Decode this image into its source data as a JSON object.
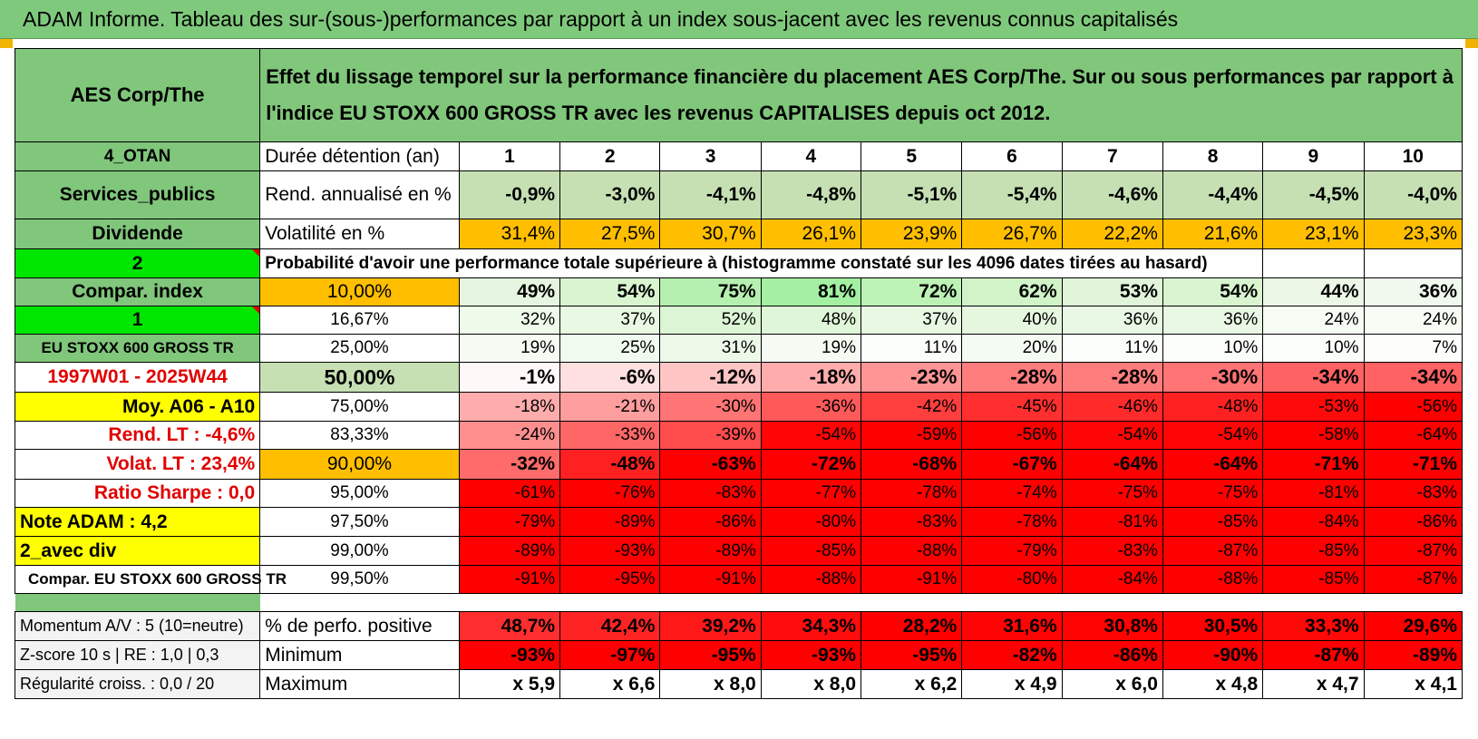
{
  "title": "ADAM Informe. Tableau des sur-(sous-)performances par rapport à un index sous-jacent avec les revenus connus capitalisés",
  "header": {
    "asset": "AES Corp/The",
    "description": "Effet du lissage temporel sur la performance financière du placement AES Corp/The. Sur ou sous performances par rapport à l'indice EU STOXX 600 GROSS TR avec les revenus CAPITALISES depuis oct 2012."
  },
  "left": {
    "otan": "4_OTAN",
    "sector": "Services_publics",
    "dividende": "Dividende",
    "two": "2",
    "compar_index": "Compar. index",
    "one": "1",
    "index_name": "EU STOXX 600 GROSS TR",
    "period": "1997W01 - 2025W44",
    "moy": "Moy. A06 - A10",
    "rend_lt": "Rend. LT :    -4,6%",
    "volat_lt": "Volat. LT :    23,4%",
    "sharpe": "Ratio Sharpe :     0,0",
    "note": "Note ADAM : 4,2",
    "avec_div": "2_avec div",
    "compar_eu": "Compar. EU STOXX 600 GROSS TR",
    "momentum": "Momentum A/V : 5 (10=neutre)",
    "zscore": "Z-score 10 s | RE : 1,0 | 0,3",
    "regularite": "Régularité croiss. : 0,0 / 20"
  },
  "rows": {
    "duree_label": "Durée détention (an)",
    "years": [
      "1",
      "2",
      "3",
      "4",
      "5",
      "6",
      "7",
      "8",
      "9",
      "10"
    ],
    "rend_label": "Rend. annualisé en %",
    "rend": [
      "-0,9%",
      "-3,0%",
      "-4,1%",
      "-4,8%",
      "-5,1%",
      "-5,4%",
      "-4,6%",
      "-4,4%",
      "-4,5%",
      "-4,0%"
    ],
    "vol_label": "Volatilité en %",
    "vol": [
      "31,4%",
      "27,5%",
      "30,7%",
      "26,1%",
      "23,9%",
      "26,7%",
      "22,2%",
      "21,6%",
      "23,1%",
      "23,3%"
    ],
    "prob_label": "Probabilité d'avoir une performance totale supérieure à (histogramme constaté sur les 4096 dates tirées au hasard)",
    "quantiles": [
      {
        "label": "10,00%",
        "values": [
          "49%",
          "54%",
          "75%",
          "81%",
          "72%",
          "62%",
          "53%",
          "54%",
          "44%",
          "36%"
        ],
        "colors": [
          "#e6f5df",
          "#d9f5d0",
          "#b5f0b0",
          "#a3f0a3",
          "#bcf2b5",
          "#d0f3c8",
          "#e0f5da",
          "#d9f5d0",
          "#ecf7e8",
          "#f1f9ee"
        ]
      },
      {
        "label": "16,67%",
        "values": [
          "32%",
          "37%",
          "52%",
          "48%",
          "37%",
          "40%",
          "36%",
          "36%",
          "24%",
          "24%"
        ],
        "colors": [
          "#eefaea",
          "#e8f8e3",
          "#dcf5d4",
          "#e0f6d8",
          "#e8f8e3",
          "#e6f7e0",
          "#e9f8e4",
          "#e9f8e4",
          "#f6fbf4",
          "#f6fbf4"
        ]
      },
      {
        "label": "25,00%",
        "values": [
          "19%",
          "25%",
          "31%",
          "19%",
          "11%",
          "20%",
          "11%",
          "10%",
          "10%",
          "7%"
        ],
        "colors": [
          "#f5fbf3",
          "#f1faef",
          "#ecf8e8",
          "#f5fbf3",
          "#fafdf9",
          "#f4fbf2",
          "#fafdf9",
          "#fbfdfa",
          "#fbfdfa",
          "#fdfefc"
        ]
      },
      {
        "label": "50,00%",
        "values": [
          "-1%",
          "-6%",
          "-12%",
          "-18%",
          "-23%",
          "-28%",
          "-28%",
          "-30%",
          "-34%",
          "-34%"
        ],
        "colors": [
          "#fff8f8",
          "#ffe0e0",
          "#ffc4c4",
          "#ffacac",
          "#ff9595",
          "#ff7d7d",
          "#ff7d7d",
          "#ff7474",
          "#ff6262",
          "#ff6262"
        ]
      },
      {
        "label": "75,00%",
        "values": [
          "-18%",
          "-21%",
          "-30%",
          "-36%",
          "-42%",
          "-45%",
          "-46%",
          "-48%",
          "-53%",
          "-56%"
        ],
        "colors": [
          "#ffacac",
          "#ff9e9e",
          "#ff7474",
          "#ff5a5a",
          "#ff3e3e",
          "#ff2f2f",
          "#ff2a2a",
          "#ff2121",
          "#ff0a0a",
          "#ff0000"
        ]
      },
      {
        "label": "83,33%",
        "values": [
          "-24%",
          "-33%",
          "-39%",
          "-54%",
          "-59%",
          "-56%",
          "-54%",
          "-54%",
          "-58%",
          "-64%"
        ],
        "colors": [
          "#ff8f8f",
          "#ff6767",
          "#ff4c4c",
          "#ff0606",
          "#ff0000",
          "#ff0000",
          "#ff0606",
          "#ff0606",
          "#ff0000",
          "#ff0000"
        ]
      },
      {
        "label": "90,00%",
        "values": [
          "-32%",
          "-48%",
          "-63%",
          "-72%",
          "-68%",
          "-67%",
          "-64%",
          "-64%",
          "-71%",
          "-71%"
        ],
        "colors": [
          "#ff6b6b",
          "#ff2121",
          "#ff0000",
          "#ff0000",
          "#ff0000",
          "#ff0000",
          "#ff0000",
          "#ff0000",
          "#ff0000",
          "#ff0000"
        ]
      },
      {
        "label": "95,00%",
        "values": [
          "-61%",
          "-76%",
          "-83%",
          "-77%",
          "-78%",
          "-74%",
          "-75%",
          "-75%",
          "-81%",
          "-83%"
        ],
        "colors": [
          "#ff0000",
          "#ff0000",
          "#ff0000",
          "#ff0000",
          "#ff0000",
          "#ff0000",
          "#ff0000",
          "#ff0000",
          "#ff0000",
          "#ff0000"
        ]
      },
      {
        "label": "97,50%",
        "values": [
          "-79%",
          "-89%",
          "-86%",
          "-80%",
          "-83%",
          "-78%",
          "-81%",
          "-85%",
          "-84%",
          "-86%"
        ],
        "colors": [
          "#ff0000",
          "#ff0000",
          "#ff0000",
          "#ff0000",
          "#ff0000",
          "#ff0000",
          "#ff0000",
          "#ff0000",
          "#ff0000",
          "#ff0000"
        ]
      },
      {
        "label": "99,00%",
        "values": [
          "-89%",
          "-93%",
          "-89%",
          "-85%",
          "-88%",
          "-79%",
          "-83%",
          "-87%",
          "-85%",
          "-87%"
        ],
        "colors": [
          "#ff0000",
          "#ff0000",
          "#ff0000",
          "#ff0000",
          "#ff0000",
          "#ff0000",
          "#ff0000",
          "#ff0000",
          "#ff0000",
          "#ff0000"
        ]
      },
      {
        "label": "99,50%",
        "values": [
          "-91%",
          "-95%",
          "-91%",
          "-88%",
          "-91%",
          "-80%",
          "-84%",
          "-88%",
          "-85%",
          "-87%"
        ],
        "colors": [
          "#ff0000",
          "#ff0000",
          "#ff0000",
          "#ff0000",
          "#ff0000",
          "#ff0000",
          "#ff0000",
          "#ff0000",
          "#ff0000",
          "#ff0000"
        ]
      }
    ],
    "pos_label": "% de perfo. positive",
    "pos": [
      "48,7%",
      "42,4%",
      "39,2%",
      "34,3%",
      "28,2%",
      "31,6%",
      "30,8%",
      "30,5%",
      "33,3%",
      "29,6%"
    ],
    "pos_colors": [
      "#ff2e2e",
      "#ff2424",
      "#ff1818",
      "#ff0d0d",
      "#ff0000",
      "#ff0404",
      "#ff0202",
      "#ff0101",
      "#ff0808",
      "#ff0000"
    ],
    "min_label": "Minimum",
    "min": [
      "-93%",
      "-97%",
      "-95%",
      "-93%",
      "-95%",
      "-82%",
      "-86%",
      "-90%",
      "-87%",
      "-89%"
    ],
    "max_label": "Maximum",
    "max": [
      "x 5,9",
      "x 6,6",
      "x 8,0",
      "x 8,0",
      "x 6,2",
      "x 4,9",
      "x 6,0",
      "x 4,8",
      "x 4,7",
      "x 4,1"
    ]
  },
  "colors": {
    "title_bg": "#7fc97c",
    "header_green": "#80c67b",
    "light_green": "#c6e0b4",
    "bright_green": "#00e600",
    "orange": "#ffbf00",
    "yellow": "#ffff00",
    "red": "#ff0000"
  }
}
